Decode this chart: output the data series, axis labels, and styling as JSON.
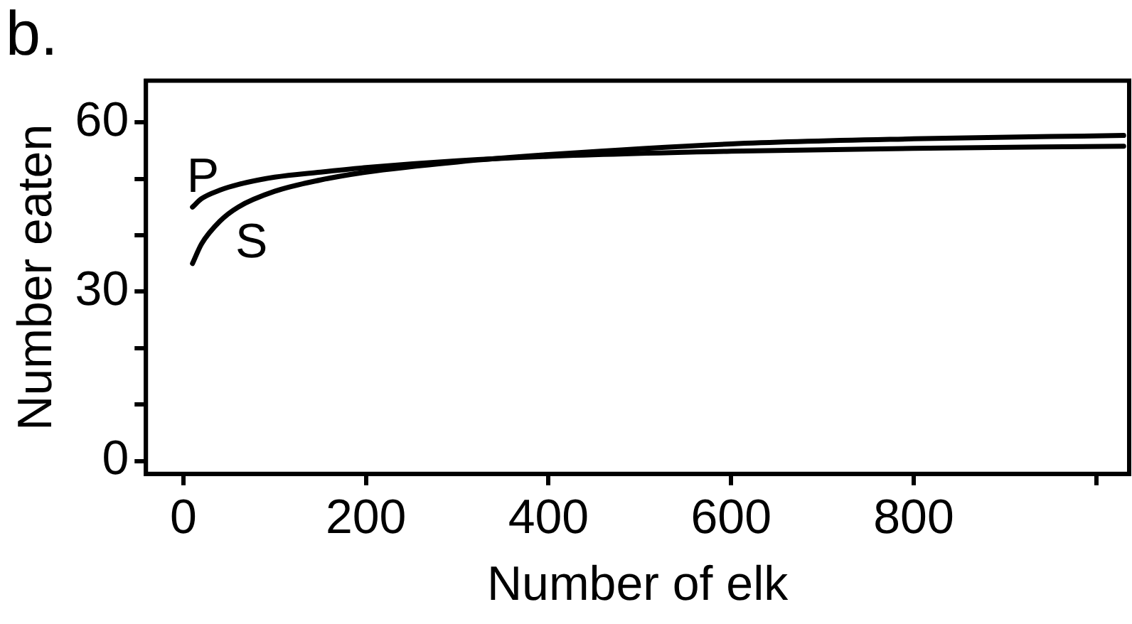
{
  "chart_data": {
    "type": "line",
    "title": "b.",
    "xlabel": "Number of elk",
    "ylabel": "Number eaten",
    "xlim": [
      -41,
      1036
    ],
    "xticks": [
      0,
      200,
      400,
      600,
      800,
      {
        "value": 1000,
        "label": null
      }
    ],
    "ylim": [
      -2.3,
      67.4
    ],
    "yticks": [
      0,
      {
        "value": 10,
        "label": null
      },
      {
        "value": 20,
        "label": null
      },
      30,
      {
        "value": 40,
        "label": null
      },
      {
        "value": 50,
        "label": null
      },
      60
    ],
    "grid": false,
    "legend": false,
    "marker": "none",
    "line_style": "solid",
    "series": [
      {
        "name": "P",
        "color": "#000000",
        "x": [
          10,
          20,
          40,
          60,
          100,
          150,
          200,
          300,
          400,
          600,
          800,
          1030
        ],
        "values": [
          45,
          46.5,
          48,
          49,
          50.3,
          51.2,
          52,
          53.2,
          54,
          54.9,
          55.4,
          55.8
        ]
      },
      {
        "name": "S",
        "color": "#000000",
        "x": [
          10,
          20,
          40,
          60,
          100,
          150,
          200,
          300,
          400,
          600,
          800,
          1030
        ],
        "values": [
          35,
          38.5,
          42.5,
          45,
          47.8,
          49.8,
          51.2,
          53,
          54.3,
          56.2,
          57.1,
          57.7
        ]
      }
    ]
  }
}
